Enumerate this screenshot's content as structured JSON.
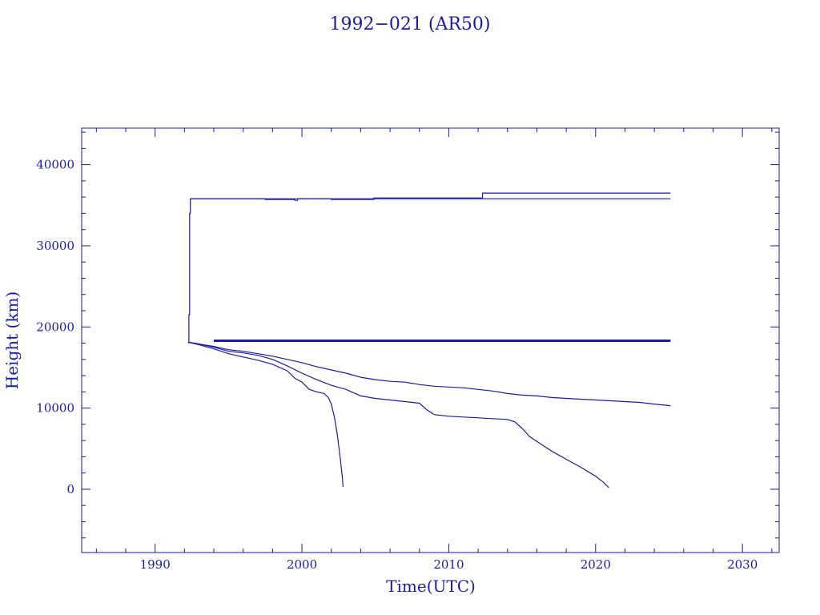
{
  "chart_data": {
    "type": "line",
    "title": "1992−021 (AR50)",
    "xlabel": "Time(UTC)",
    "ylabel": "Height (km)",
    "xlim": [
      1985,
      2032.5
    ],
    "ylim": [
      -7800,
      44500
    ],
    "x_major_ticks": [
      1990,
      2000,
      2010,
      2020,
      2030
    ],
    "x_tick_labels": [
      "1990",
      "2000",
      "2010",
      "2020",
      "2030"
    ],
    "x_minor_step": 2,
    "y_major_ticks": [
      0,
      10000,
      20000,
      30000,
      40000
    ],
    "y_tick_labels": [
      "0",
      "10000",
      "20000",
      "30000",
      "40000"
    ],
    "y_minor_step": 2000,
    "grid": false,
    "color": "#1a1aa6",
    "series": [
      {
        "style": "thin",
        "x": [
          1992.25,
          1992.3,
          1992.3,
          1992.35,
          1992.35,
          1992.4,
          1992.4,
          1997.5,
          1997.5,
          1999.5,
          1999.5,
          1999.7,
          1999.7,
          2002.0,
          2002.0,
          2004.9,
          2004.9,
          2012.3,
          2012.3,
          2025.1
        ],
        "y": [
          18000,
          18200,
          21500,
          21500,
          34000,
          34000,
          35800,
          35800,
          35700,
          35700,
          35600,
          35600,
          35800,
          35800,
          35700,
          35700,
          35900,
          35900,
          36500,
          36500
        ]
      },
      {
        "style": "thin",
        "x": [
          1992.4,
          2004.9,
          2004.9,
          2012.3,
          2012.3,
          2025.1
        ],
        "y": [
          35800,
          35800,
          35800,
          35800,
          35800,
          35800
        ]
      },
      {
        "style": "thick",
        "x": [
          1994.0,
          2025.1
        ],
        "y": [
          18300,
          18300
        ]
      },
      {
        "style": "thin",
        "x": [
          1992.3,
          1993.0,
          1994.0,
          1995.0,
          1996.0,
          1997.0,
          1998.0,
          1999.0,
          2000.0,
          2001.0,
          2002.0,
          2003.0,
          2004.0,
          2005.0,
          2006.0,
          2007.0,
          2008.0,
          2009.0,
          2010.0,
          2011.0,
          2012.0,
          2013.0,
          2014.0,
          2015.0,
          2016.0,
          2017.0,
          2018.0,
          2019.0,
          2020.0,
          2021.0,
          2022.0,
          2023.0,
          2024.0,
          2025.1
        ],
        "y": [
          18100,
          17900,
          17600,
          17200,
          17000,
          16700,
          16400,
          16000,
          15600,
          15100,
          14700,
          14300,
          13800,
          13500,
          13300,
          13200,
          12900,
          12700,
          12600,
          12500,
          12300,
          12100,
          11800,
          11600,
          11500,
          11300,
          11200,
          11100,
          11000,
          10900,
          10800,
          10700,
          10500,
          10300
        ]
      },
      {
        "style": "thin",
        "x": [
          1992.3,
          1993.0,
          1994.0,
          1995.0,
          1996.0,
          1997.0,
          1998.0,
          1999.0,
          2000.0,
          2001.0,
          2002.0,
          2003.0,
          2004.0,
          2005.0,
          2006.0,
          2007.0,
          2008.0,
          2008.5,
          2009.0,
          2010.0,
          2011.0,
          2012.0,
          2013.0,
          2014.0,
          2014.5,
          2015.0,
          2015.5,
          2016.0,
          2017.0,
          2018.0,
          2019.0,
          2020.0,
          2020.5,
          2020.9
        ],
        "y": [
          18100,
          17900,
          17500,
          17000,
          16800,
          16500,
          16000,
          15200,
          14300,
          13500,
          12800,
          12300,
          11500,
          11200,
          11000,
          10800,
          10600,
          9800,
          9200,
          9000,
          8900,
          8800,
          8700,
          8600,
          8300,
          7500,
          6500,
          5900,
          4700,
          3700,
          2700,
          1600,
          900,
          200
        ]
      },
      {
        "style": "thin",
        "x": [
          1992.3,
          1993.0,
          1994.0,
          1995.0,
          1996.0,
          1997.0,
          1998.0,
          1999.0,
          1999.5,
          2000.0,
          2000.5,
          2001.0,
          2001.5,
          2001.8,
          2002.0,
          2002.2,
          2002.4,
          2002.6,
          2002.75,
          2002.8
        ],
        "y": [
          18100,
          17800,
          17300,
          16700,
          16300,
          15900,
          15400,
          14600,
          13700,
          13200,
          12300,
          12000,
          11800,
          11300,
          10500,
          9000,
          6800,
          4000,
          1500,
          300
        ]
      }
    ]
  }
}
